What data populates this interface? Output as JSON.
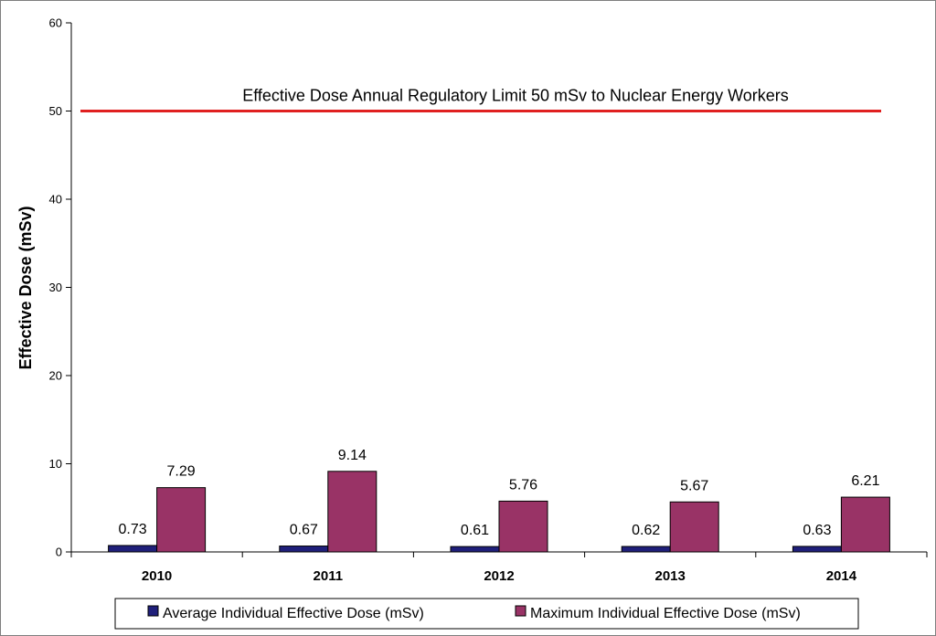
{
  "chart_data": {
    "type": "bar",
    "title": "",
    "xlabel": "",
    "ylabel": "Effective Dose (mSv)",
    "ylim": [
      0,
      60
    ],
    "yticks": [
      0,
      10,
      20,
      30,
      40,
      50,
      60
    ],
    "grid": false,
    "legend_position": "bottom",
    "categories": [
      "2010",
      "2011",
      "2012",
      "2013",
      "2014"
    ],
    "series": [
      {
        "name": "Average Individual Effective Dose (mSv)",
        "color": "#1f1f7a",
        "values": [
          0.73,
          0.67,
          0.61,
          0.62,
          0.63
        ],
        "labels": [
          "0.73",
          "0.67",
          "0.61",
          "0.62",
          "0.63"
        ]
      },
      {
        "name": "Maximum Individual Effective Dose (mSv)",
        "color": "#993366",
        "values": [
          7.29,
          9.14,
          5.76,
          5.67,
          6.21
        ],
        "labels": [
          "7.29",
          "9.14",
          "5.76",
          "5.67",
          "6.21"
        ]
      }
    ],
    "reference_line": {
      "value": 50,
      "color": "#e02020",
      "label": "Effective Dose Annual Regulatory Limit 50 mSv to Nuclear Energy Workers"
    }
  }
}
